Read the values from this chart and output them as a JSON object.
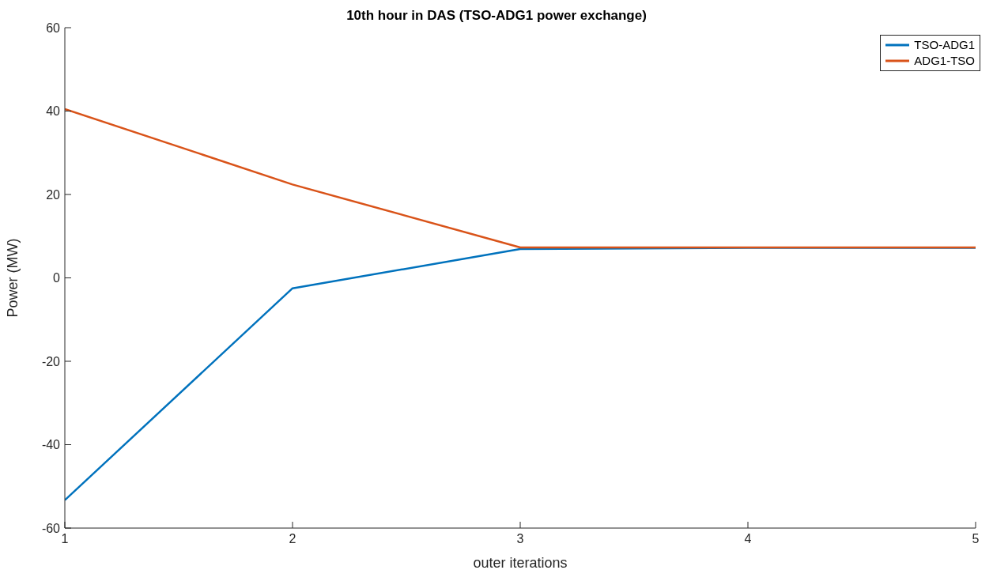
{
  "chart_data": {
    "type": "line",
    "title": "10th hour in DAS (TSO-ADG1 power exchange)",
    "xlabel": "outer iterations",
    "ylabel": "Power (MW)",
    "x": [
      1,
      2,
      3,
      4,
      5
    ],
    "series": [
      {
        "name": "TSO-ADG1",
        "color": "#0072bd",
        "values": [
          -53.3,
          -2.5,
          6.9,
          7.2,
          7.2
        ]
      },
      {
        "name": "ADG1-TSO",
        "color": "#d95319",
        "values": [
          40.5,
          22.4,
          7.3,
          7.3,
          7.3
        ]
      }
    ],
    "xlim": [
      1,
      5
    ],
    "xticks": [
      1,
      2,
      3,
      4,
      5
    ],
    "ylim": [
      -60,
      60
    ],
    "yticks": [
      -60,
      -40,
      -20,
      0,
      20,
      40,
      60
    ],
    "grid": false,
    "legend": "top right",
    "marker": "none",
    "line_style": "solid"
  }
}
